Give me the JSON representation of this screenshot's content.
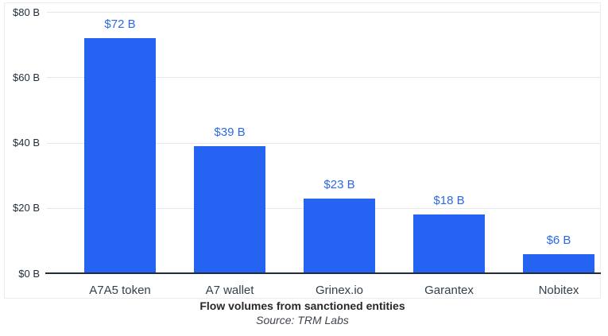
{
  "chart_data": {
    "type": "bar",
    "title": "Flow volumes from sanctioned entities",
    "source": "Source: TRM Labs",
    "categories": [
      "A7A5 token",
      "A7 wallet",
      "Grinex.io",
      "Garantex",
      "Nobitex"
    ],
    "values": [
      72,
      39,
      23,
      18,
      6
    ],
    "value_labels": [
      "$72 B",
      "$39 B",
      "$23 B",
      "$18 B",
      "$6 B"
    ],
    "y_ticks": [
      {
        "value": 80,
        "label": "$80 B"
      },
      {
        "value": 60,
        "label": "$60 B"
      },
      {
        "value": 40,
        "label": "$40 B"
      },
      {
        "value": 20,
        "label": "$20 B"
      },
      {
        "value": 0,
        "label": "$0 B"
      }
    ],
    "ylim": [
      0,
      80
    ],
    "xlabel": "",
    "ylabel": "",
    "grid": true,
    "legend": false,
    "colors": {
      "bar": "#2564f2",
      "value_label": "#2d68e8",
      "y_tick_label": "#232e3a",
      "x_tick_label": "#32414e",
      "gridline": "#e3e7ee",
      "axis_line": "#222c39",
      "title": "#28282c",
      "source": "#40464e",
      "card_border": "#ededf1",
      "background": "#ffffff"
    }
  }
}
